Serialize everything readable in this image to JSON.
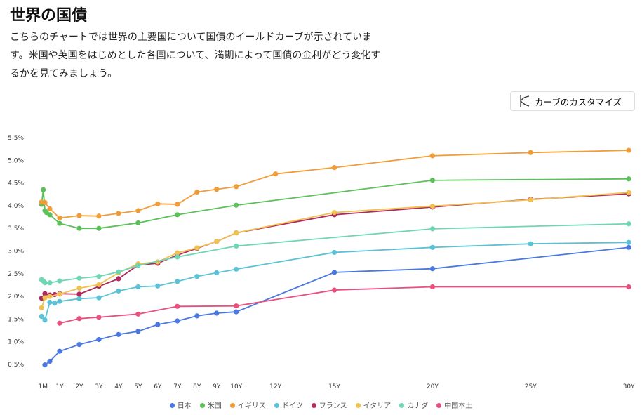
{
  "title": "世界の国債",
  "description": "こちらのチャートでは世界の主要国について国債のイールドカーブが示されています。米国や英国をはじめとした各国について、満期によって国債の金利がどう変化するかを見てみましょう。",
  "customize_button": {
    "label": "カーブのカスタマイズ",
    "icon": "curve-icon"
  },
  "chart_data": {
    "type": "line",
    "xlabel": "",
    "ylabel": "",
    "ylim": [
      0.5,
      5.5
    ],
    "yticks": [
      "0.5%",
      "1.0%",
      "1.5%",
      "2.0%",
      "2.5%",
      "3.0%",
      "3.5%",
      "4.0%",
      "4.5%",
      "5.0%",
      "5.5%"
    ],
    "xticks": [
      {
        "v": 0.083,
        "l": "1M"
      },
      {
        "v": 1,
        "l": "1Y"
      },
      {
        "v": 2,
        "l": "2Y"
      },
      {
        "v": 3,
        "l": "3Y"
      },
      {
        "v": 4,
        "l": "4Y"
      },
      {
        "v": 5,
        "l": "5Y"
      },
      {
        "v": 6,
        "l": "6Y"
      },
      {
        "v": 7,
        "l": "7Y"
      },
      {
        "v": 8,
        "l": "8Y"
      },
      {
        "v": 9,
        "l": "9Y"
      },
      {
        "v": 10,
        "l": "10Y"
      },
      {
        "v": 12,
        "l": "12Y"
      },
      {
        "v": 15,
        "l": "15Y"
      },
      {
        "v": 20,
        "l": "20Y"
      },
      {
        "v": 25,
        "l": "25Y"
      },
      {
        "v": 30,
        "l": "30Y"
      }
    ],
    "legend_position": "bottom",
    "series": [
      {
        "name": "日本",
        "color": "#4a78e0",
        "points": [
          [
            0.25,
            0.49
          ],
          [
            0.5,
            0.57
          ],
          [
            1,
            0.79
          ],
          [
            2,
            0.94
          ],
          [
            3,
            1.05
          ],
          [
            4,
            1.16
          ],
          [
            5,
            1.23
          ],
          [
            6,
            1.38
          ],
          [
            7,
            1.46
          ],
          [
            8,
            1.57
          ],
          [
            9,
            1.63
          ],
          [
            10,
            1.66
          ],
          [
            15,
            2.53
          ],
          [
            20,
            2.61
          ],
          [
            30,
            3.08
          ]
        ]
      },
      {
        "name": "米国",
        "color": "#5cc05a",
        "points": [
          [
            0.083,
            4.03
          ],
          [
            0.167,
            4.35
          ],
          [
            0.25,
            3.89
          ],
          [
            0.33,
            3.85
          ],
          [
            0.5,
            3.8
          ],
          [
            1,
            3.61
          ],
          [
            2,
            3.5
          ],
          [
            3,
            3.5
          ],
          [
            5,
            3.62
          ],
          [
            7,
            3.8
          ],
          [
            10,
            4.01
          ],
          [
            20,
            4.56
          ],
          [
            30,
            4.59
          ]
        ]
      },
      {
        "name": "イギリス",
        "color": "#f09c38",
        "points": [
          [
            0.083,
            4.08
          ],
          [
            0.25,
            4.07
          ],
          [
            0.5,
            3.93
          ],
          [
            1,
            3.73
          ],
          [
            2,
            3.78
          ],
          [
            3,
            3.77
          ],
          [
            4,
            3.83
          ],
          [
            5,
            3.89
          ],
          [
            6,
            4.04
          ],
          [
            7,
            4.03
          ],
          [
            8,
            4.3
          ],
          [
            9,
            4.36
          ],
          [
            10,
            4.42
          ],
          [
            12,
            4.7
          ],
          [
            15,
            4.84
          ],
          [
            20,
            5.1
          ],
          [
            25,
            5.17
          ],
          [
            30,
            5.22
          ]
        ]
      },
      {
        "name": "ドイツ",
        "color": "#5bc2d6",
        "points": [
          [
            0.083,
            1.56
          ],
          [
            0.25,
            1.48
          ],
          [
            0.5,
            1.87
          ],
          [
            0.75,
            1.85
          ],
          [
            1,
            1.89
          ],
          [
            2,
            1.95
          ],
          [
            3,
            1.97
          ],
          [
            4,
            2.12
          ],
          [
            5,
            2.21
          ],
          [
            6,
            2.23
          ],
          [
            7,
            2.33
          ],
          [
            8,
            2.44
          ],
          [
            9,
            2.52
          ],
          [
            10,
            2.6
          ],
          [
            15,
            2.97
          ],
          [
            20,
            3.08
          ],
          [
            25,
            3.16
          ],
          [
            30,
            3.19
          ]
        ]
      },
      {
        "name": "フランス",
        "color": "#b02a5e",
        "points": [
          [
            0.083,
            1.96
          ],
          [
            0.25,
            2.06
          ],
          [
            0.5,
            2.03
          ],
          [
            0.75,
            2.04
          ],
          [
            1,
            2.06
          ],
          [
            2,
            2.05
          ],
          [
            3,
            2.22
          ],
          [
            4,
            2.39
          ],
          [
            5,
            2.69
          ],
          [
            6,
            2.73
          ],
          [
            7,
            2.91
          ],
          [
            8,
            3.06
          ],
          [
            9,
            3.21
          ],
          [
            10,
            3.4
          ],
          [
            15,
            3.8
          ],
          [
            20,
            3.97
          ],
          [
            25,
            4.14
          ],
          [
            30,
            4.26
          ]
        ]
      },
      {
        "name": "イタリア",
        "color": "#f0c050",
        "points": [
          [
            0.083,
            1.75
          ],
          [
            0.25,
            1.97
          ],
          [
            0.5,
            2.0
          ],
          [
            1,
            2.05
          ],
          [
            2,
            2.18
          ],
          [
            3,
            2.26
          ],
          [
            4,
            2.52
          ],
          [
            5,
            2.72
          ],
          [
            6,
            2.76
          ],
          [
            7,
            2.96
          ],
          [
            8,
            3.07
          ],
          [
            9,
            3.21
          ],
          [
            10,
            3.4
          ],
          [
            15,
            3.85
          ],
          [
            20,
            3.99
          ],
          [
            25,
            4.13
          ],
          [
            30,
            4.29
          ]
        ]
      },
      {
        "name": "カナダ",
        "color": "#6ed6b4",
        "points": [
          [
            0.083,
            2.37
          ],
          [
            0.167,
            2.34
          ],
          [
            0.25,
            2.3
          ],
          [
            0.5,
            2.3
          ],
          [
            1,
            2.34
          ],
          [
            2,
            2.4
          ],
          [
            3,
            2.44
          ],
          [
            4,
            2.54
          ],
          [
            5,
            2.68
          ],
          [
            7,
            2.87
          ],
          [
            10,
            3.11
          ],
          [
            20,
            3.49
          ],
          [
            30,
            3.6
          ]
        ]
      },
      {
        "name": "中国本土",
        "color": "#e8507e",
        "points": [
          [
            1,
            1.41
          ],
          [
            2,
            1.51
          ],
          [
            3,
            1.54
          ],
          [
            5,
            1.61
          ],
          [
            7,
            1.78
          ],
          [
            10,
            1.79
          ],
          [
            15,
            2.14
          ],
          [
            20,
            2.21
          ],
          [
            30,
            2.21
          ]
        ]
      }
    ]
  }
}
